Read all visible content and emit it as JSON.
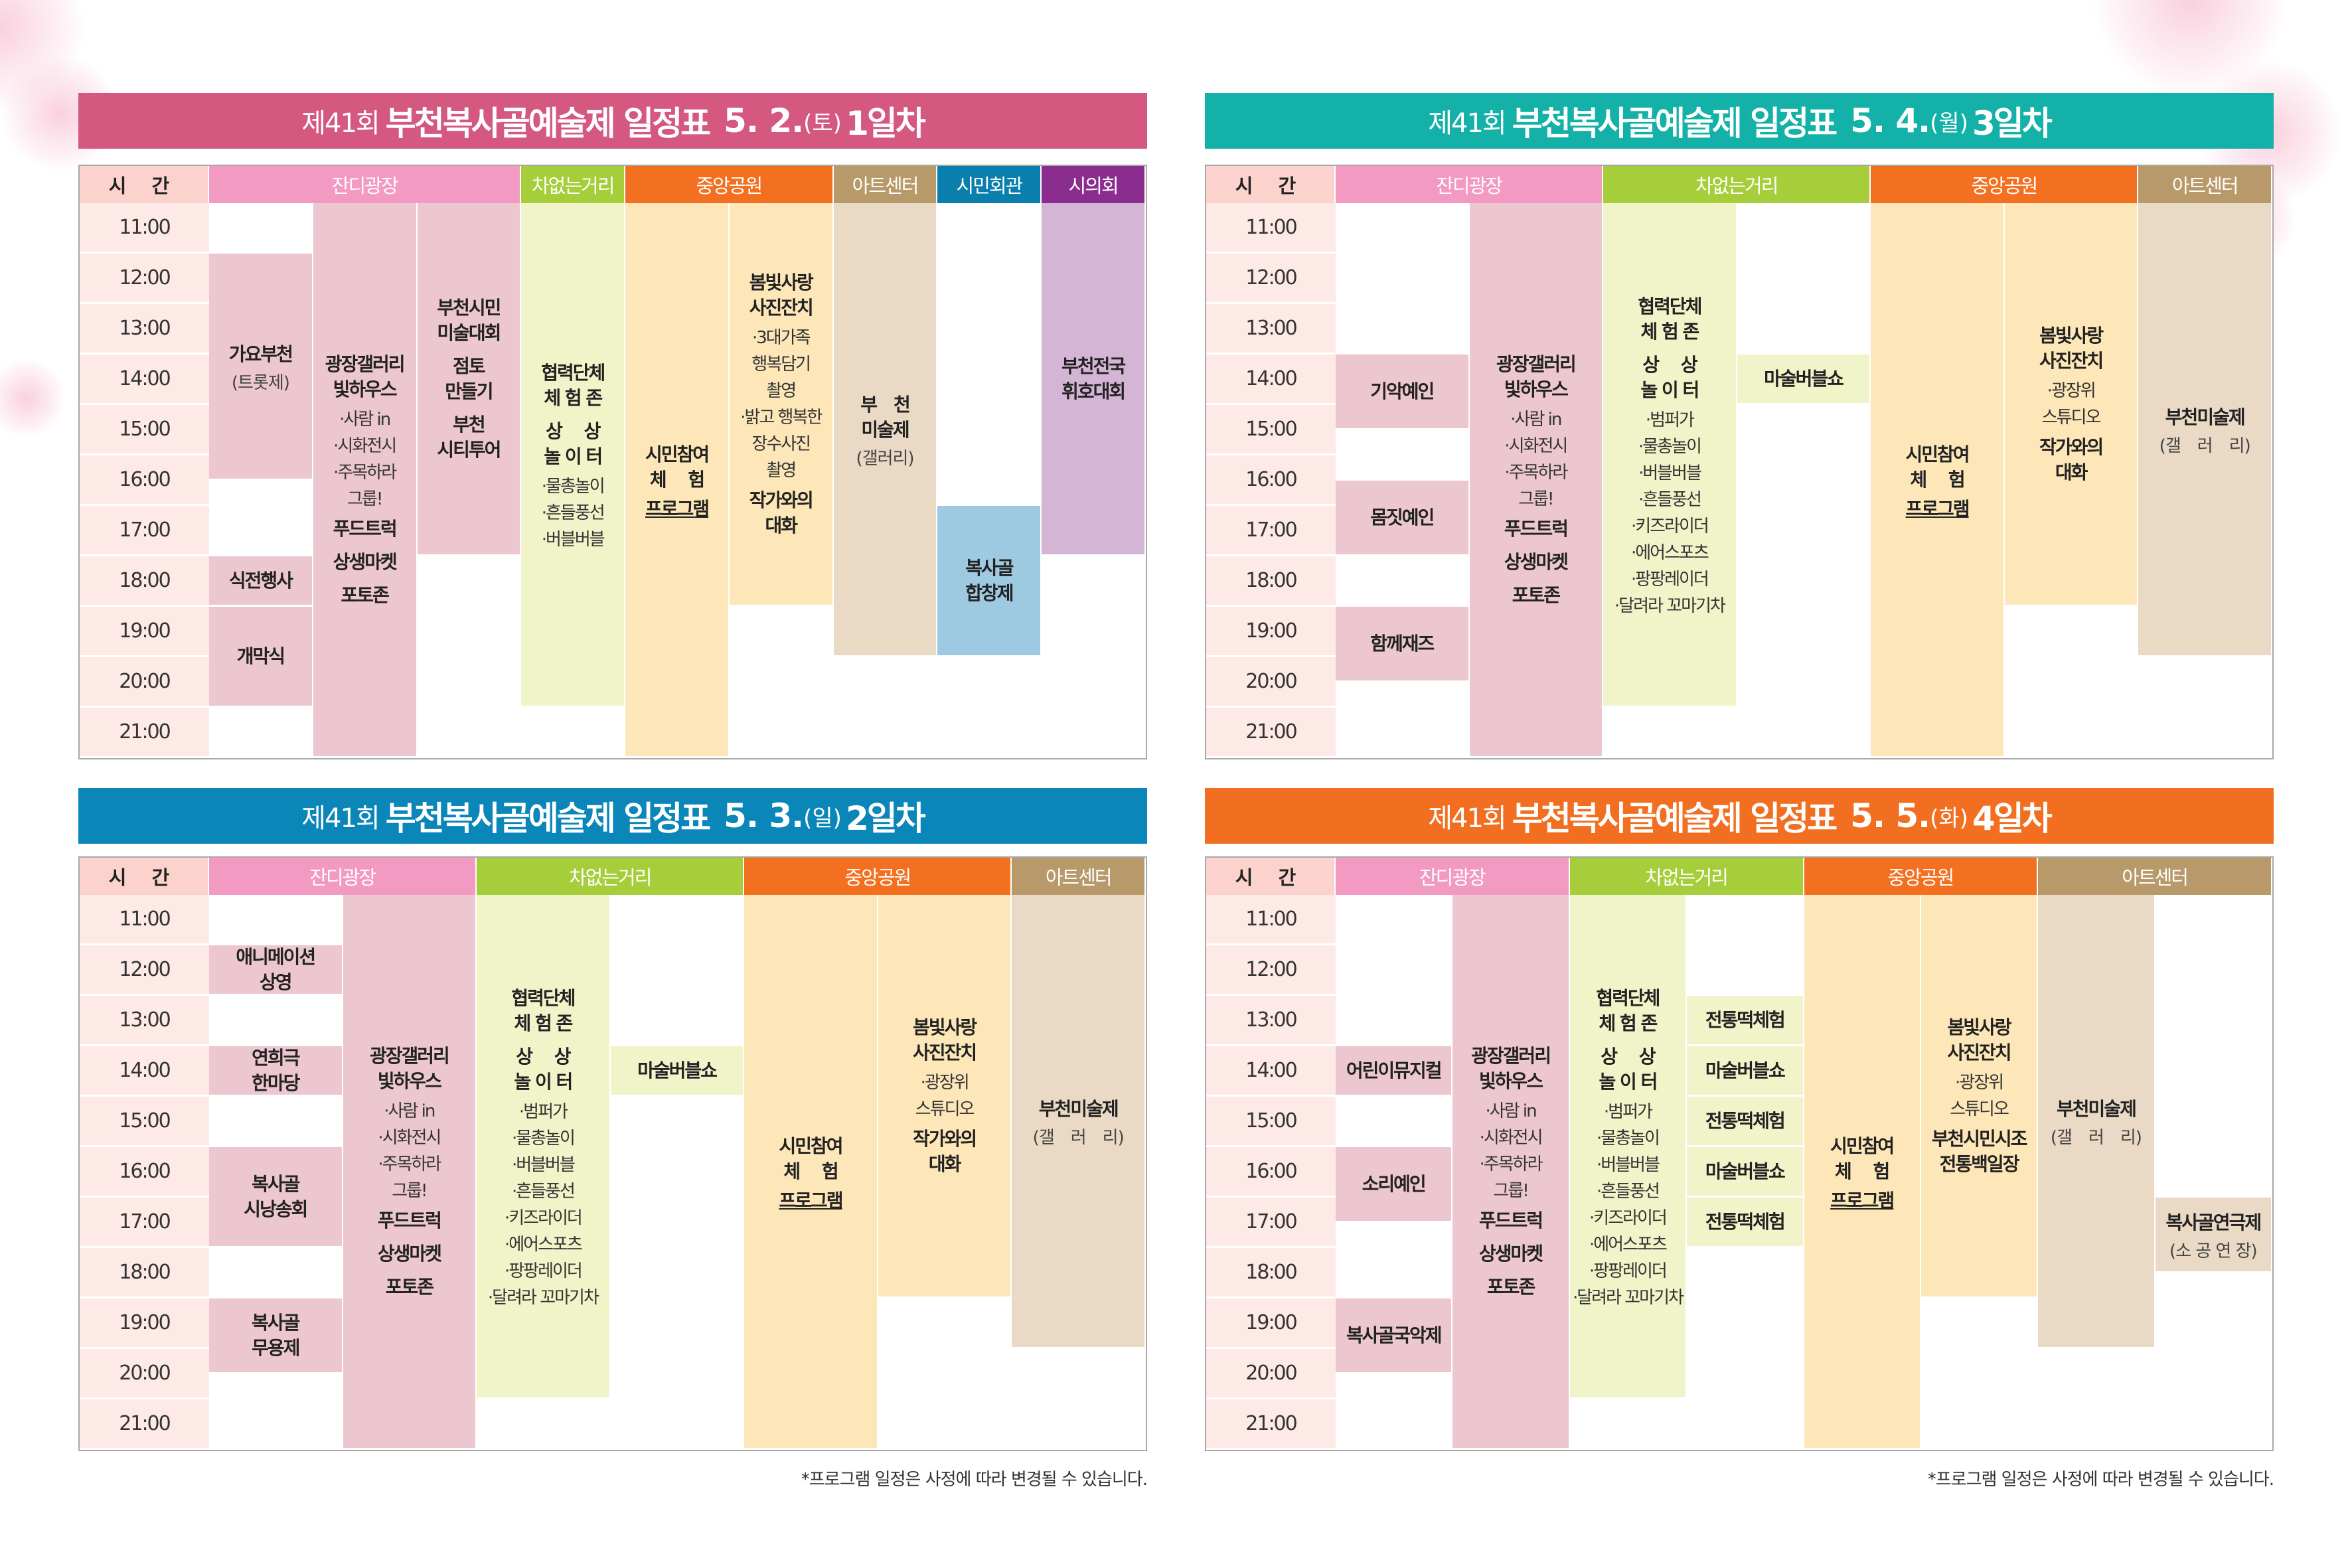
{
  "colors": {
    "time_header": "#fbd3cc",
    "time_cell": "#fde9e5",
    "잔디광장": "#f39ac3",
    "차없는거리": "#a6cd3a",
    "중앙공원": "#f37021",
    "아트센터": "#b89a6a",
    "시민회관": "#0a7fae",
    "시의회": "#8a2d8e",
    "ev_잔디광장": "#edc7d0",
    "ev_차없는거리": "#f1f4c8",
    "ev_중앙공원": "#fde7b9",
    "ev_아트센터": "#e9d9c5",
    "ev_시민회관": "#9ecae1",
    "ev_시의회": "#d5b5d6"
  },
  "time_header": "시 간",
  "hours": [
    "11:00",
    "12:00",
    "13:00",
    "14:00",
    "15:00",
    "16:00",
    "17:00",
    "18:00",
    "19:00",
    "20:00",
    "21:00"
  ],
  "note": "*프로그램 일정은 사정에 따라 변경될 수 있습니다.",
  "tables": [
    {
      "title": {
        "prefix": "제41회",
        "name": "부천복사골예술제 일정표",
        "date": "5. 2.",
        "weekday": "(토)",
        "day": "1일차"
      },
      "title_color": "#d4587f",
      "venues": [
        {
          "name": "잔디광장",
          "span": 3
        },
        {
          "name": "차없는거리",
          "span": 1
        },
        {
          "name": "중앙공원",
          "span": 2
        },
        {
          "name": "아트센터",
          "span": 1
        },
        {
          "name": "시민회관",
          "span": 1
        },
        {
          "name": "시의회",
          "span": 1
        }
      ],
      "events": [
        {
          "col": 0,
          "venue": "잔디광장",
          "start": "12:00",
          "end": "16:30",
          "lines": [
            {
              "t": "가요부천",
              "s": "b"
            },
            {
              "t": "(트롯제)",
              "s": "s"
            }
          ]
        },
        {
          "col": 0,
          "venue": "잔디광장",
          "start": "18:00",
          "end": "19:00",
          "lines": [
            {
              "t": "식전행사",
              "s": "b"
            }
          ]
        },
        {
          "col": 0,
          "venue": "잔디광장",
          "start": "19:00",
          "end": "21:00",
          "lines": [
            {
              "t": "개막식",
              "s": "b"
            }
          ]
        },
        {
          "col": 1,
          "venue": "잔디광장",
          "start": "11:00",
          "end": "22:00",
          "lines": [
            {
              "t": "광장갤러리\n빛하우스",
              "s": "b"
            },
            {
              "t": "·사람 in\n·시화전시\n·주목하라\n그룹!",
              "s": "n"
            },
            {
              "t": "푸드트럭",
              "s": "b"
            },
            {
              "t": "상생마켓",
              "s": "b"
            },
            {
              "t": "포토존",
              "s": "b"
            }
          ]
        },
        {
          "col": 2,
          "venue": "잔디광장",
          "start": "11:00",
          "end": "18:00",
          "lines": [
            {
              "t": "부천시민\n미술대회",
              "s": "b"
            },
            {
              "t": "점토\n만들기",
              "s": "b"
            },
            {
              "t": "부천\n시티투어",
              "s": "b"
            }
          ]
        },
        {
          "col": 3,
          "venue": "차없는거리",
          "start": "11:00",
          "end": "21:00",
          "lines": [
            {
              "t": "협력단체\n체 험 존",
              "s": "b"
            },
            {
              "t": "상　 상\n놀 이 터",
              "s": "b"
            },
            {
              "t": "·물총놀이\n·흔들풍선\n·버블버블",
              "s": "n"
            }
          ]
        },
        {
          "col": 4,
          "venue": "중앙공원",
          "start": "11:00",
          "end": "22:00",
          "lines": [
            {
              "t": "시민참여\n체　 험",
              "s": "b"
            },
            {
              "t": "프로그램",
              "s": "u"
            }
          ]
        },
        {
          "col": 5,
          "venue": "중앙공원",
          "start": "11:00",
          "end": "19:00",
          "lines": [
            {
              "t": "봄빛사랑\n사진잔치",
              "s": "b"
            },
            {
              "t": "·3대가족\n행복담기\n촬영\n·밝고 행복한\n장수사진\n촬영",
              "s": "n"
            },
            {
              "t": "작가와의\n대화",
              "s": "b"
            }
          ]
        },
        {
          "col": 6,
          "venue": "아트센터",
          "start": "11:00",
          "end": "20:00",
          "lines": [
            {
              "t": "부　천\n미술제",
              "s": "b"
            },
            {
              "t": "(갤러리)",
              "s": "s"
            }
          ]
        },
        {
          "col": 7,
          "venue": "시민회관",
          "start": "17:00",
          "end": "20:00",
          "lines": [
            {
              "t": "복사골\n합창제",
              "s": "b"
            }
          ]
        },
        {
          "col": 8,
          "venue": "시의회",
          "start": "11:00",
          "end": "18:00",
          "lines": [
            {
              "t": "부천전국\n휘호대회",
              "s": "b"
            }
          ]
        }
      ]
    },
    {
      "title": {
        "prefix": "제41회",
        "name": "부천복사골예술제 일정표",
        "date": "5. 4.",
        "weekday": "(월)",
        "day": "3일차"
      },
      "title_color": "#13b1a7",
      "venues": [
        {
          "name": "잔디광장",
          "span": 2
        },
        {
          "name": "차없는거리",
          "span": 2
        },
        {
          "name": "중앙공원",
          "span": 2
        },
        {
          "name": "아트센터",
          "span": 1
        }
      ],
      "events": [
        {
          "col": 0,
          "venue": "잔디광장",
          "start": "14:00",
          "end": "15:30",
          "lines": [
            {
              "t": "기악예인",
              "s": "b"
            }
          ]
        },
        {
          "col": 0,
          "venue": "잔디광장",
          "start": "16:30",
          "end": "18:00",
          "lines": [
            {
              "t": "몸짓예인",
              "s": "b"
            }
          ]
        },
        {
          "col": 0,
          "venue": "잔디광장",
          "start": "19:00",
          "end": "20:30",
          "lines": [
            {
              "t": "함께재즈",
              "s": "b"
            }
          ]
        },
        {
          "col": 1,
          "venue": "잔디광장",
          "start": "11:00",
          "end": "22:00",
          "lines": [
            {
              "t": "광장갤러리\n빛하우스",
              "s": "b"
            },
            {
              "t": "·사람 in\n·시화전시\n·주목하라\n그룹!",
              "s": "n"
            },
            {
              "t": "푸드트럭",
              "s": "b"
            },
            {
              "t": "상생마켓",
              "s": "b"
            },
            {
              "t": "포토존",
              "s": "b"
            }
          ]
        },
        {
          "col": 2,
          "venue": "차없는거리",
          "start": "11:00",
          "end": "21:00",
          "lines": [
            {
              "t": "협력단체\n체 험 존",
              "s": "b"
            },
            {
              "t": "상　 상\n놀 이 터",
              "s": "b"
            },
            {
              "t": "·범퍼가\n·물총놀이\n·버블버블\n·흔들풍선\n·키즈라이더\n·에어스포츠\n·팡팡레이더\n·달려라 꼬마기차",
              "s": "n"
            }
          ]
        },
        {
          "col": 3,
          "venue": "차없는거리",
          "start": "14:00",
          "end": "15:00",
          "lines": [
            {
              "t": "마술버블쇼",
              "s": "b"
            }
          ]
        },
        {
          "col": 4,
          "venue": "중앙공원",
          "start": "11:00",
          "end": "22:00",
          "lines": [
            {
              "t": "시민참여\n체　 험",
              "s": "b"
            },
            {
              "t": "프로그램",
              "s": "u"
            }
          ]
        },
        {
          "col": 5,
          "venue": "중앙공원",
          "start": "11:00",
          "end": "19:00",
          "lines": [
            {
              "t": "봄빛사랑\n사진잔치",
              "s": "b"
            },
            {
              "t": "·광장위\n스튜디오",
              "s": "n"
            },
            {
              "t": "작가와의\n대화",
              "s": "b"
            }
          ]
        },
        {
          "col": 6,
          "venue": "아트센터",
          "start": "11:00",
          "end": "20:00",
          "lines": [
            {
              "t": "부천미술제",
              "s": "b"
            },
            {
              "t": "(갤　러　리)",
              "s": "s"
            }
          ]
        }
      ]
    },
    {
      "title": {
        "prefix": "제41회",
        "name": "부천복사골예술제 일정표",
        "date": "5. 3.",
        "weekday": "(일)",
        "day": "2일차"
      },
      "title_color": "#0a86b8",
      "venues": [
        {
          "name": "잔디광장",
          "span": 2
        },
        {
          "name": "차없는거리",
          "span": 2
        },
        {
          "name": "중앙공원",
          "span": 2
        },
        {
          "name": "아트센터",
          "span": 1
        }
      ],
      "events": [
        {
          "col": 0,
          "venue": "잔디광장",
          "start": "12:00",
          "end": "13:00",
          "lines": [
            {
              "t": "애니메이션\n상영",
              "s": "b"
            }
          ]
        },
        {
          "col": 0,
          "venue": "잔디광장",
          "start": "14:00",
          "end": "15:00",
          "lines": [
            {
              "t": "연희극\n한마당",
              "s": "b"
            }
          ]
        },
        {
          "col": 0,
          "venue": "잔디광장",
          "start": "16:00",
          "end": "18:00",
          "lines": [
            {
              "t": "복사골\n시낭송회",
              "s": "b"
            }
          ]
        },
        {
          "col": 0,
          "venue": "잔디광장",
          "start": "19:00",
          "end": "20:30",
          "lines": [
            {
              "t": "복사골\n무용제",
              "s": "b"
            }
          ]
        },
        {
          "col": 1,
          "venue": "잔디광장",
          "start": "11:00",
          "end": "22:00",
          "lines": [
            {
              "t": "광장갤러리\n빛하우스",
              "s": "b"
            },
            {
              "t": "·사람 in\n·시화전시\n·주목하라\n그룹!",
              "s": "n"
            },
            {
              "t": "푸드트럭",
              "s": "b"
            },
            {
              "t": "상생마켓",
              "s": "b"
            },
            {
              "t": "포토존",
              "s": "b"
            }
          ]
        },
        {
          "col": 2,
          "venue": "차없는거리",
          "start": "11:00",
          "end": "21:00",
          "lines": [
            {
              "t": "협력단체\n체 험 존",
              "s": "b"
            },
            {
              "t": "상　 상\n놀 이 터",
              "s": "b"
            },
            {
              "t": "·범퍼가\n·물총놀이\n·버블버블\n·흔들풍선\n·키즈라이더\n·에어스포츠\n·팡팡레이더\n·달려라 꼬마기차",
              "s": "n"
            }
          ]
        },
        {
          "col": 3,
          "venue": "차없는거리",
          "start": "14:00",
          "end": "15:00",
          "lines": [
            {
              "t": "마술버블쇼",
              "s": "b"
            }
          ]
        },
        {
          "col": 4,
          "venue": "중앙공원",
          "start": "11:00",
          "end": "22:00",
          "lines": [
            {
              "t": "시민참여\n체　 험",
              "s": "b"
            },
            {
              "t": "프로그램",
              "s": "u"
            }
          ]
        },
        {
          "col": 5,
          "venue": "중앙공원",
          "start": "11:00",
          "end": "19:00",
          "lines": [
            {
              "t": "봄빛사랑\n사진잔치",
              "s": "b"
            },
            {
              "t": "·광장위\n스튜디오",
              "s": "n"
            },
            {
              "t": "작가와의\n대화",
              "s": "b"
            }
          ]
        },
        {
          "col": 6,
          "venue": "아트센터",
          "start": "11:00",
          "end": "20:00",
          "lines": [
            {
              "t": "부천미술제",
              "s": "b"
            },
            {
              "t": "(갤　러　리)",
              "s": "s"
            }
          ]
        }
      ]
    },
    {
      "title": {
        "prefix": "제41회",
        "name": "부천복사골예술제 일정표",
        "date": "5. 5.",
        "weekday": "(화)",
        "day": "4일차"
      },
      "title_color": "#f26f22",
      "venues": [
        {
          "name": "잔디광장",
          "span": 2
        },
        {
          "name": "차없는거리",
          "span": 2
        },
        {
          "name": "중앙공원",
          "span": 2
        },
        {
          "name": "아트센터",
          "span": 2
        }
      ],
      "events": [
        {
          "col": 0,
          "venue": "잔디광장",
          "start": "14:00",
          "end": "15:00",
          "lines": [
            {
              "t": "어린이뮤지컬",
              "s": "b"
            }
          ]
        },
        {
          "col": 0,
          "venue": "잔디광장",
          "start": "16:00",
          "end": "17:30",
          "lines": [
            {
              "t": "소리예인",
              "s": "b"
            }
          ]
        },
        {
          "col": 0,
          "venue": "잔디광장",
          "start": "19:00",
          "end": "20:30",
          "lines": [
            {
              "t": "복사골국악제",
              "s": "b"
            }
          ]
        },
        {
          "col": 1,
          "venue": "잔디광장",
          "start": "11:00",
          "end": "22:00",
          "lines": [
            {
              "t": "광장갤러리\n빛하우스",
              "s": "b"
            },
            {
              "t": "·사람 in\n·시화전시\n·주목하라\n그룹!",
              "s": "n"
            },
            {
              "t": "푸드트럭",
              "s": "b"
            },
            {
              "t": "상생마켓",
              "s": "b"
            },
            {
              "t": "포토존",
              "s": "b"
            }
          ]
        },
        {
          "col": 2,
          "venue": "차없는거리",
          "start": "11:00",
          "end": "21:00",
          "lines": [
            {
              "t": "협력단체\n체 험 존",
              "s": "b"
            },
            {
              "t": "상　 상\n놀 이 터",
              "s": "b"
            },
            {
              "t": "·범퍼가\n·물총놀이\n·버블버블\n·흔들풍선\n·키즈라이더\n·에어스포츠\n·팡팡레이더\n·달려라 꼬마기차",
              "s": "n"
            }
          ]
        },
        {
          "col": 3,
          "venue": "차없는거리",
          "start": "13:00",
          "end": "14:00",
          "lines": [
            {
              "t": "전통떡체험",
              "s": "b"
            }
          ]
        },
        {
          "col": 3,
          "venue": "차없는거리",
          "start": "14:00",
          "end": "15:00",
          "lines": [
            {
              "t": "마술버블쇼",
              "s": "b"
            }
          ]
        },
        {
          "col": 3,
          "venue": "차없는거리",
          "start": "15:00",
          "end": "16:00",
          "lines": [
            {
              "t": "전통떡체험",
              "s": "b"
            }
          ]
        },
        {
          "col": 3,
          "venue": "차없는거리",
          "start": "16:00",
          "end": "17:00",
          "lines": [
            {
              "t": "마술버블쇼",
              "s": "b"
            }
          ]
        },
        {
          "col": 3,
          "venue": "차없는거리",
          "start": "17:00",
          "end": "18:00",
          "lines": [
            {
              "t": "전통떡체험",
              "s": "b"
            }
          ]
        },
        {
          "col": 4,
          "venue": "중앙공원",
          "start": "11:00",
          "end": "22:00",
          "lines": [
            {
              "t": "시민참여\n체　 험",
              "s": "b"
            },
            {
              "t": "프로그램",
              "s": "u"
            }
          ]
        },
        {
          "col": 5,
          "venue": "중앙공원",
          "start": "11:00",
          "end": "19:00",
          "lines": [
            {
              "t": "봄빛사랑\n사진잔치",
              "s": "b"
            },
            {
              "t": "·광장위\n스튜디오",
              "s": "n"
            },
            {
              "t": "부천시민시조\n전통백일장",
              "s": "b"
            }
          ]
        },
        {
          "col": 6,
          "venue": "아트센터",
          "start": "11:00",
          "end": "20:00",
          "lines": [
            {
              "t": "부천미술제",
              "s": "b"
            },
            {
              "t": "(갤　러　리)",
              "s": "s"
            }
          ]
        },
        {
          "col": 7,
          "venue": "아트센터",
          "start": "17:00",
          "end": "18:30",
          "lines": [
            {
              "t": "복사골연극제",
              "s": "b"
            },
            {
              "t": "(소 공 연 장)",
              "s": "s"
            }
          ]
        }
      ]
    }
  ]
}
